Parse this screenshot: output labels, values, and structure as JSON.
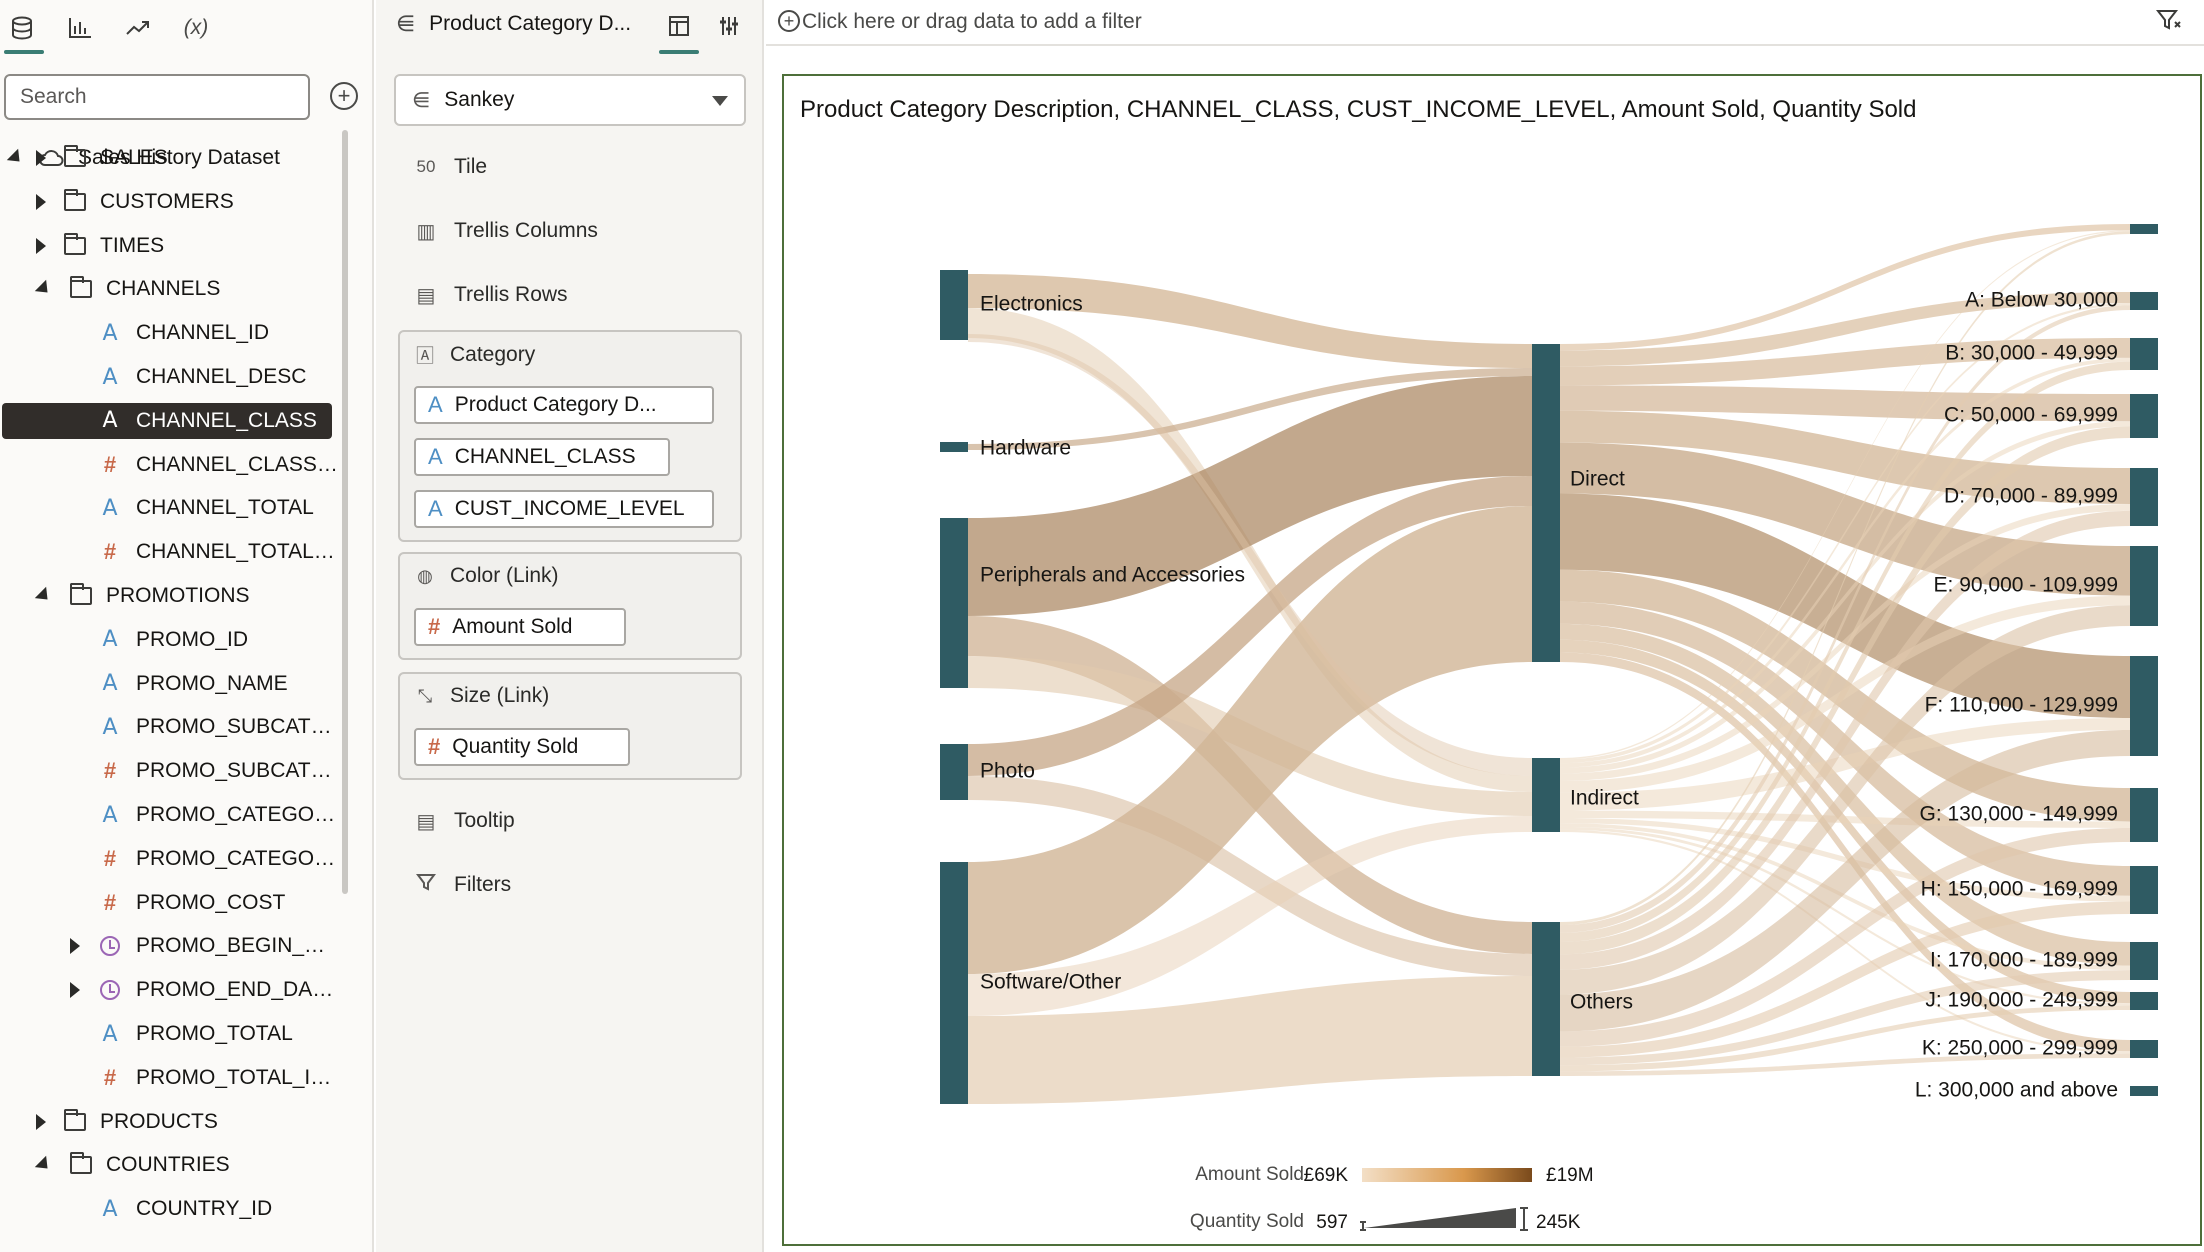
{
  "toolbar": {
    "data_icon": "database-icon",
    "viz_icon": "bar-chart-icon",
    "analytics_icon": "trend-icon",
    "calc_label": "(x)"
  },
  "search": {
    "placeholder": "Search"
  },
  "tree": {
    "dataset": "Sales History Dataset",
    "items": [
      {
        "label": "SALES",
        "kind": "folder",
        "state": "collapsed"
      },
      {
        "label": "CUSTOMERS",
        "kind": "folder",
        "state": "collapsed"
      },
      {
        "label": "TIMES",
        "kind": "folder",
        "state": "collapsed"
      },
      {
        "label": "CHANNELS",
        "kind": "folder",
        "state": "expanded"
      },
      {
        "label": "CHANNEL_ID",
        "kind": "attribute"
      },
      {
        "label": "CHANNEL_DESC",
        "kind": "attribute"
      },
      {
        "label": "CHANNEL_CLASS",
        "kind": "attribute",
        "selected": true
      },
      {
        "label": "CHANNEL_CLASS…",
        "kind": "measure"
      },
      {
        "label": "CHANNEL_TOTAL",
        "kind": "attribute"
      },
      {
        "label": "CHANNEL_TOTAL…",
        "kind": "measure"
      },
      {
        "label": "PROMOTIONS",
        "kind": "folder",
        "state": "expanded"
      },
      {
        "label": "PROMO_ID",
        "kind": "attribute"
      },
      {
        "label": "PROMO_NAME",
        "kind": "attribute"
      },
      {
        "label": "PROMO_SUBCAT…",
        "kind": "attribute"
      },
      {
        "label": "PROMO_SUBCAT…",
        "kind": "measure"
      },
      {
        "label": "PROMO_CATEGO…",
        "kind": "attribute"
      },
      {
        "label": "PROMO_CATEGO…",
        "kind": "measure"
      },
      {
        "label": "PROMO_COST",
        "kind": "measure"
      },
      {
        "label": "PROMO_BEGIN_…",
        "kind": "time"
      },
      {
        "label": "PROMO_END_DA…",
        "kind": "time"
      },
      {
        "label": "PROMO_TOTAL",
        "kind": "attribute"
      },
      {
        "label": "PROMO_TOTAL_I…",
        "kind": "measure"
      },
      {
        "label": "PRODUCTS",
        "kind": "folder",
        "state": "collapsed"
      },
      {
        "label": "COUNTRIES",
        "kind": "folder",
        "state": "expanded"
      },
      {
        "label": "COUNTRY_ID",
        "kind": "attribute"
      }
    ]
  },
  "grammar": {
    "title": "Product Category D...",
    "viz_type": "Sankey",
    "tile": "Tile",
    "tile_icon_text": "50",
    "trellis_columns": "Trellis Columns",
    "trellis_rows": "Trellis Rows",
    "category_label": "Category",
    "category_pills": [
      "Product Category D...",
      "CHANNEL_CLASS",
      "CUST_INCOME_LEVEL"
    ],
    "color_label": "Color (Link)",
    "color_pill": "Amount Sold",
    "size_label": "Size (Link)",
    "size_pill": "Quantity Sold",
    "tooltip": "Tooltip",
    "filters": "Filters"
  },
  "filter_bar": {
    "placeholder": "Click here or drag data to add a filter"
  },
  "viz": {
    "title": "Product Category Description, CHANNEL_CLASS, CUST_INCOME_LEVEL, Amount Sold, Quantity Sold"
  },
  "chart_data": {
    "type": "sankey",
    "title": "Product Category Description, CHANNEL_CLASS, CUST_INCOME_LEVEL, Amount Sold, Quantity Sold",
    "levels": [
      [
        "Electronics",
        "Hardware",
        "Peripherals and Accessories",
        "Photo",
        "Software/Other"
      ],
      [
        "Direct",
        "Indirect",
        "Others"
      ],
      [
        "A: Below 30,000",
        "B: 30,000 - 49,999",
        "C: 50,000 - 69,999",
        "D: 70,000 - 89,999",
        "E: 90,000 - 109,999",
        "F: 110,000 - 129,999",
        "G: 130,000 - 149,999",
        "H: 150,000 - 169,999",
        "I: 170,000 - 189,999",
        "J: 190,000 - 249,999",
        "K: 250,000 - 299,999",
        "L: 300,000 and above"
      ]
    ],
    "node_color": "#2f5b63",
    "link_color_low": "#f3dfc6",
    "link_color_high": "#7a4a1c",
    "legend": {
      "color": {
        "label": "Amount Sold",
        "min": "£69K",
        "max": "£19M"
      },
      "size": {
        "label": "Quantity Sold",
        "min": "597",
        "max": "245K"
      }
    }
  }
}
